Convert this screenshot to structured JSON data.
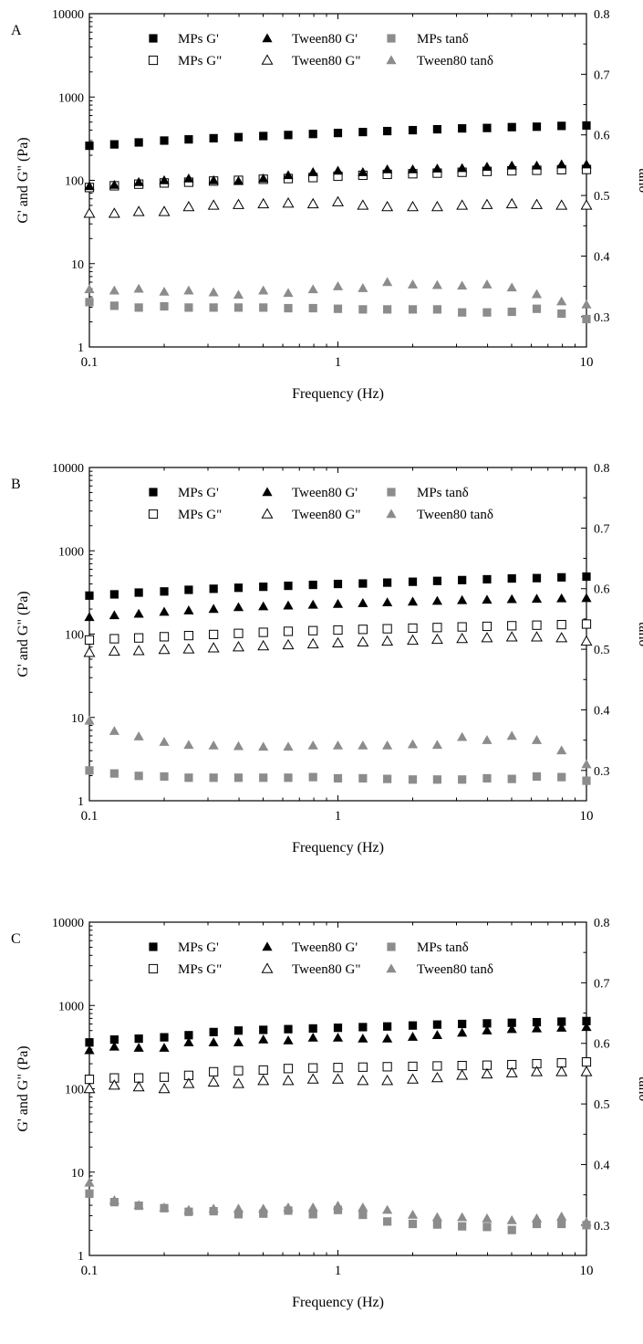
{
  "chart_data": [
    {
      "panel_label": "A",
      "type": "scatter",
      "xscale": "log",
      "xlim": [
        0.1,
        10
      ],
      "xticks": [
        "0.1",
        "1",
        "10"
      ],
      "xlabel": "Frequency (Hz)",
      "left_axis": {
        "label": "G' and G\" (Pa)",
        "scale": "log",
        "ylim": [
          1,
          10000
        ],
        "ticks": [
          "1",
          "10",
          "100",
          "1000",
          "10000"
        ]
      },
      "right_axis": {
        "label": "tanδ",
        "scale": "linear",
        "ylim": [
          0.25,
          0.8
        ],
        "ticks": [
          "0.3",
          "0.4",
          "0.5",
          "0.6",
          "0.7",
          "0.8"
        ]
      },
      "legend_position": "top",
      "x": [
        0.1,
        0.126,
        0.158,
        0.2,
        0.251,
        0.316,
        0.398,
        0.501,
        0.631,
        0.794,
        1.0,
        1.26,
        1.58,
        2.0,
        2.51,
        3.16,
        3.98,
        5.01,
        6.31,
        7.94,
        10.0
      ],
      "series": [
        {
          "name": "MPs G'",
          "marker": "square-filled",
          "color": "#000000",
          "axis": "left",
          "values": [
            260,
            270,
            285,
            300,
            310,
            320,
            330,
            340,
            350,
            360,
            370,
            380,
            390,
            400,
            410,
            420,
            425,
            435,
            440,
            450,
            455
          ]
        },
        {
          "name": "MPs G\"",
          "marker": "square-open",
          "color": "#000000",
          "axis": "left",
          "values": [
            82,
            86,
            90,
            93,
            95,
            98,
            100,
            103,
            105,
            108,
            112,
            115,
            118,
            120,
            122,
            125,
            128,
            130,
            132,
            134,
            135
          ]
        },
        {
          "name": "Tween80 G'",
          "marker": "triangle-filled",
          "color": "#000000",
          "axis": "left",
          "values": [
            85,
            88,
            95,
            100,
            105,
            100,
            98,
            105,
            115,
            125,
            130,
            125,
            135,
            135,
            138,
            140,
            145,
            150,
            150,
            155,
            155
          ]
        },
        {
          "name": "Tween80 G\"",
          "marker": "triangle-open",
          "color": "#000000",
          "axis": "left",
          "values": [
            40,
            40,
            42,
            42,
            48,
            50,
            51,
            52,
            53,
            52,
            55,
            50,
            48,
            48,
            48,
            50,
            51,
            52,
            51,
            50,
            50
          ]
        },
        {
          "name": "MPs tanδ",
          "marker": "square-filled",
          "color": "#8c8c8c",
          "axis": "right",
          "values": [
            0.324,
            0.318,
            0.315,
            0.317,
            0.315,
            0.315,
            0.315,
            0.315,
            0.314,
            0.314,
            0.313,
            0.312,
            0.312,
            0.312,
            0.312,
            0.307,
            0.307,
            0.308,
            0.313,
            0.305,
            0.296
          ]
        },
        {
          "name": "Tween80 tanδ",
          "marker": "triangle-filled",
          "color": "#8c8c8c",
          "axis": "right",
          "values": [
            0.345,
            0.343,
            0.346,
            0.341,
            0.343,
            0.34,
            0.336,
            0.343,
            0.339,
            0.345,
            0.35,
            0.347,
            0.357,
            0.353,
            0.352,
            0.351,
            0.353,
            0.348,
            0.337,
            0.325,
            0.32
          ]
        }
      ]
    },
    {
      "panel_label": "B",
      "type": "scatter",
      "xscale": "log",
      "xlim": [
        0.1,
        10
      ],
      "xticks": [
        "0.1",
        "1",
        "10"
      ],
      "xlabel": "Frequency (Hz)",
      "left_axis": {
        "label": "G' and G\" (Pa)",
        "scale": "log",
        "ylim": [
          1,
          10000
        ],
        "ticks": [
          "1",
          "10",
          "100",
          "1000",
          "10000"
        ]
      },
      "right_axis": {
        "label": "tanδ",
        "scale": "linear",
        "ylim": [
          0.25,
          0.8
        ],
        "ticks": [
          "0.3",
          "0.4",
          "0.5",
          "0.6",
          "0.7",
          "0.8"
        ]
      },
      "legend_position": "top",
      "x": [
        0.1,
        0.126,
        0.158,
        0.2,
        0.251,
        0.316,
        0.398,
        0.501,
        0.631,
        0.794,
        1.0,
        1.26,
        1.58,
        2.0,
        2.51,
        3.16,
        3.98,
        5.01,
        6.31,
        7.94,
        10.0
      ],
      "series": [
        {
          "name": "MPs G'",
          "marker": "square-filled",
          "color": "#000000",
          "axis": "left",
          "values": [
            290,
            300,
            315,
            325,
            340,
            350,
            360,
            370,
            380,
            390,
            400,
            405,
            415,
            425,
            435,
            445,
            455,
            465,
            470,
            480,
            490
          ]
        },
        {
          "name": "MPs G\"",
          "marker": "square-open",
          "color": "#000000",
          "axis": "left",
          "values": [
            85,
            88,
            90,
            93,
            96,
            99,
            102,
            105,
            108,
            110,
            112,
            114,
            116,
            118,
            120,
            122,
            124,
            126,
            128,
            130,
            132
          ]
        },
        {
          "name": "Tween80 G'",
          "marker": "triangle-filled",
          "color": "#000000",
          "axis": "left",
          "values": [
            160,
            168,
            175,
            185,
            192,
            200,
            210,
            215,
            220,
            225,
            230,
            235,
            240,
            245,
            250,
            255,
            258,
            262,
            265,
            268,
            270
          ]
        },
        {
          "name": "Tween80 G\"",
          "marker": "triangle-open",
          "color": "#000000",
          "axis": "left",
          "values": [
            60,
            62,
            63,
            65,
            66,
            68,
            70,
            72,
            74,
            76,
            78,
            80,
            82,
            84,
            86,
            88,
            90,
            92,
            92,
            90,
            82
          ]
        },
        {
          "name": "MPs tanδ",
          "marker": "square-filled",
          "color": "#8c8c8c",
          "axis": "right",
          "values": [
            0.3,
            0.295,
            0.291,
            0.29,
            0.288,
            0.288,
            0.288,
            0.288,
            0.288,
            0.289,
            0.287,
            0.287,
            0.286,
            0.285,
            0.285,
            0.285,
            0.287,
            0.286,
            0.29,
            0.289,
            0.283
          ]
        },
        {
          "name": "Tween80 tanδ",
          "marker": "triangle-filled",
          "color": "#8c8c8c",
          "axis": "right",
          "values": [
            0.382,
            0.365,
            0.356,
            0.347,
            0.342,
            0.341,
            0.34,
            0.339,
            0.339,
            0.341,
            0.341,
            0.341,
            0.341,
            0.343,
            0.342,
            0.355,
            0.35,
            0.357,
            0.35,
            0.333,
            0.31
          ]
        }
      ]
    },
    {
      "panel_label": "C",
      "type": "scatter",
      "xscale": "log",
      "xlim": [
        0.1,
        10
      ],
      "xticks": [
        "0.1",
        "1",
        "10"
      ],
      "xlabel": "Frequency (Hz)",
      "left_axis": {
        "label": "G' and G\" (Pa)",
        "scale": "log",
        "ylim": [
          1,
          10000
        ],
        "ticks": [
          "1",
          "10",
          "100",
          "1000",
          "10000"
        ]
      },
      "right_axis": {
        "label": "tanδ",
        "scale": "linear",
        "ylim": [
          0.25,
          0.8
        ],
        "ticks": [
          "0.3",
          "0.4",
          "0.5",
          "0.6",
          "0.7",
          "0.8"
        ]
      },
      "legend_position": "top",
      "x": [
        0.1,
        0.126,
        0.158,
        0.2,
        0.251,
        0.316,
        0.398,
        0.501,
        0.631,
        0.794,
        1.0,
        1.26,
        1.58,
        2.0,
        2.51,
        3.16,
        3.98,
        5.01,
        6.31,
        7.94,
        10.0
      ],
      "series": [
        {
          "name": "MPs G'",
          "marker": "square-filled",
          "color": "#000000",
          "axis": "left",
          "values": [
            360,
            390,
            400,
            415,
            440,
            480,
            500,
            510,
            520,
            530,
            540,
            550,
            560,
            575,
            590,
            600,
            610,
            620,
            630,
            640,
            650
          ]
        },
        {
          "name": "MPs G\"",
          "marker": "square-open",
          "color": "#000000",
          "axis": "left",
          "values": [
            130,
            135,
            135,
            138,
            145,
            160,
            165,
            168,
            175,
            178,
            180,
            182,
            184,
            186,
            188,
            190,
            192,
            195,
            200,
            205,
            210
          ]
        },
        {
          "name": "Tween80 G'",
          "marker": "triangle-filled",
          "color": "#000000",
          "axis": "left",
          "values": [
            290,
            320,
            310,
            310,
            360,
            360,
            360,
            390,
            380,
            410,
            410,
            400,
            400,
            420,
            440,
            470,
            500,
            520,
            530,
            540,
            550
          ]
        },
        {
          "name": "Tween80 G\"",
          "marker": "triangle-open",
          "color": "#000000",
          "axis": "left",
          "values": [
            100,
            110,
            105,
            100,
            115,
            120,
            115,
            125,
            125,
            130,
            130,
            125,
            125,
            130,
            135,
            145,
            150,
            155,
            160,
            160,
            160
          ]
        },
        {
          "name": "MPs tanδ",
          "marker": "square-filled",
          "color": "#8c8c8c",
          "axis": "right",
          "values": [
            0.352,
            0.338,
            0.332,
            0.328,
            0.322,
            0.323,
            0.318,
            0.319,
            0.324,
            0.318,
            0.325,
            0.317,
            0.306,
            0.302,
            0.301,
            0.298,
            0.297,
            0.292,
            0.302,
            0.302,
            0.3
          ]
        },
        {
          "name": "Tween80 tanδ",
          "marker": "triangle-filled",
          "color": "#8c8c8c",
          "axis": "right",
          "values": [
            0.37,
            0.341,
            0.333,
            0.329,
            0.325,
            0.327,
            0.327,
            0.327,
            0.329,
            0.329,
            0.332,
            0.329,
            0.325,
            0.317,
            0.313,
            0.313,
            0.311,
            0.308,
            0.311,
            0.314,
            0.305
          ]
        }
      ]
    }
  ]
}
